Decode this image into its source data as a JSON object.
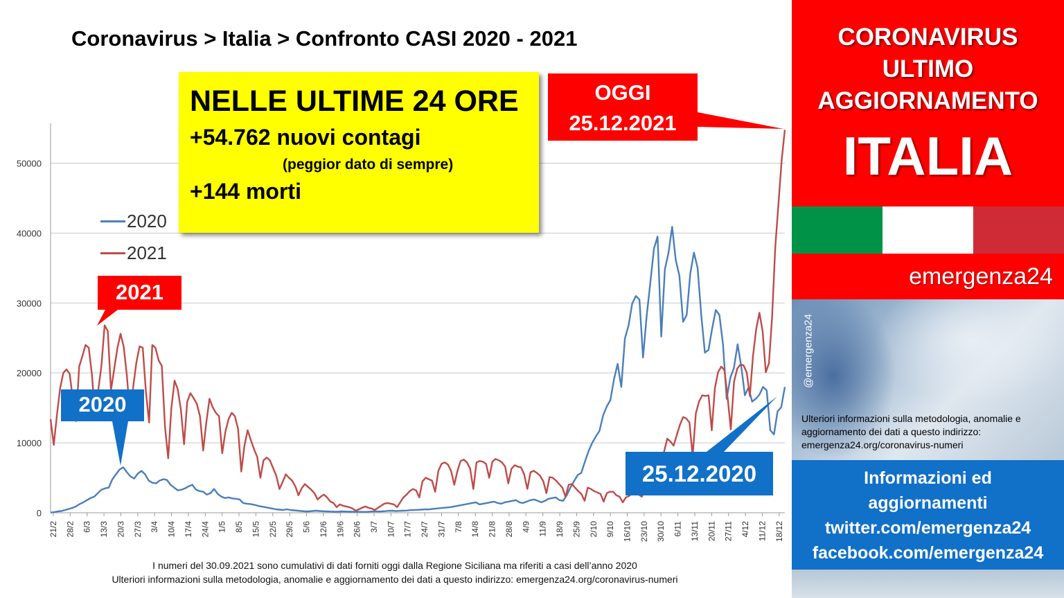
{
  "title": "Coronavirus > Italia > Confronto CASI 2020 - 2021",
  "highlight_box": {
    "headline": "NELLE ULTIME 24 ORE",
    "new_cases": "+54.762 nuovi contagi",
    "note": "(peggior dato di sempre)",
    "deaths": "+144 morti"
  },
  "callouts": {
    "oggi_line1": "OGGI",
    "oggi_line2": "25.12.2021",
    "label_2021": "2021",
    "label_2020": "2020",
    "date_2020": "25.12.2020"
  },
  "footer": {
    "line1": "I numeri del 30.09.2021 sono cumulativi di dati forniti oggi dalla Regione Siciliana ma riferiti a casi dell’anno 2020",
    "line2": "Ulteriori informazioni sulla metodologia, anomalie e aggiornamento dei dati a questo indirizzo: emergenza24.org/coronavirus-numeri"
  },
  "sidebar": {
    "line1": "CORONAVIRUS",
    "line2": "ULTIMO",
    "line3": "AGGIORNAMENTO",
    "country": "ITALIA",
    "brand": "emergenza24",
    "handle": "@emergenza24",
    "method_text": "Ulteriori informazioni sulla metodologia, anomalie e aggiornamento dei dati a questo indirizzo: emergenza24.org/coronavirus-numeri",
    "info_lines": [
      "Informazioni ed",
      "aggiornamenti",
      "twitter.com/emergenza24",
      "facebook.com/emergenza24"
    ],
    "flag_colors": [
      "#009246",
      "#ffffff",
      "#ce2b37"
    ]
  },
  "colors": {
    "series_2020": "#4a7ebb",
    "series_2021": "#be4b48",
    "callout_red": "#ff0000",
    "callout_blue": "#1170c8",
    "highlight": "#ffff00"
  },
  "chart_data": {
    "type": "line",
    "x_tick_labels": [
      "21/2",
      "28/2",
      "6/3",
      "13/3",
      "20/3",
      "27/3",
      "3/4",
      "10/4",
      "17/4",
      "24/4",
      "1/5",
      "8/5",
      "15/5",
      "22/5",
      "29/5",
      "5/6",
      "12/6",
      "19/6",
      "26/6",
      "3/7",
      "10/7",
      "17/7",
      "24/7",
      "31/7",
      "7/8",
      "14/8",
      "21/8",
      "28/8",
      "4/9",
      "11/9",
      "18/9",
      "25/9",
      "2/10",
      "9/10",
      "16/10",
      "23/10",
      "30/10",
      "6/11",
      "13/11",
      "20/11",
      "27/11",
      "4/12",
      "11/12",
      "18/12"
    ],
    "x_start": "21/2",
    "x_end": "25/12",
    "ylim": [
      0,
      55000
    ],
    "y_ticks": [
      0,
      10000,
      20000,
      30000,
      40000,
      50000
    ],
    "grid": true,
    "legend": "left",
    "series": [
      {
        "name": "2020",
        "values": [
          20,
          100,
          200,
          250,
          400,
          550,
          700,
          900,
          1250,
          1500,
          1800,
          2100,
          2300,
          2800,
          3300,
          3500,
          3600,
          4800,
          5500,
          6200,
          6500,
          5800,
          5200,
          4900,
          5600,
          6000,
          5500,
          4600,
          4300,
          4200,
          4600,
          4800,
          4700,
          4000,
          3600,
          3200,
          3300,
          3500,
          3800,
          4000,
          3300,
          3100,
          3000,
          2600,
          2800,
          3400,
          2700,
          2300,
          2100,
          2200,
          2050,
          2000,
          1900,
          1400,
          1300,
          1250,
          1150,
          1000,
          900,
          800,
          700,
          600,
          500,
          450,
          400,
          500,
          400,
          350,
          300,
          250,
          200,
          200,
          250,
          300,
          250,
          220,
          200,
          180,
          160,
          150,
          200,
          180,
          170,
          160,
          150,
          140,
          130,
          130,
          180,
          200,
          190,
          200,
          230,
          280,
          300,
          250,
          280,
          300,
          320,
          380,
          400,
          420,
          450,
          500,
          480,
          550,
          600,
          650,
          700,
          750,
          800,
          900,
          1000,
          1100,
          1200,
          1300,
          1400,
          1500,
          1200,
          1300,
          1400,
          1500,
          1600,
          1400,
          1300,
          1500,
          1600,
          1700,
          1800,
          1500,
          1400,
          1600,
          1800,
          1900,
          1700,
          1500,
          1700,
          2000,
          2100,
          2200,
          1800,
          1700,
          2500,
          3600,
          4500,
          5400,
          5700,
          7300,
          8800,
          10000,
          10900,
          11700,
          13900,
          15200,
          16100,
          19100,
          21300,
          18000,
          24900,
          26800,
          29900,
          31000,
          30500,
          22200,
          28200,
          32900,
          37800,
          39500,
          25200,
          34800,
          37200,
          40900,
          36100,
          33900,
          27300,
          28300,
          34300,
          37200,
          35000,
          28300,
          22900,
          23300,
          26300,
          29000,
          28300,
          24000,
          16300,
          19300,
          20700,
          24100,
          21000,
          16800,
          17900,
          15900,
          16300,
          16900,
          18000,
          17500,
          11800,
          11200,
          14500,
          15100,
          18000
        ],
        "color": "#4a7ebb"
      },
      {
        "name": "2021",
        "values": [
          13400,
          9700,
          14000,
          17800,
          20000,
          20500,
          19900,
          16400,
          13100,
          20900,
          22400,
          24000,
          23600,
          19800,
          13800,
          17500,
          21000,
          26800,
          26000,
          17500,
          20500,
          23500,
          25600,
          23800,
          19700,
          14000,
          18000,
          21500,
          23800,
          23600,
          17200,
          12900,
          24000,
          23600,
          21800,
          21000,
          12300,
          7800,
          15000,
          18900,
          17700,
          14800,
          9800,
          15900,
          17100,
          16400,
          15600,
          13800,
          8900,
          12900,
          16300,
          15100,
          14300,
          13800,
          8500,
          11600,
          13400,
          14300,
          13800,
          12000,
          5900,
          9600,
          11800,
          10400,
          9100,
          8000,
          5000,
          7500,
          7900,
          7500,
          6400,
          5300,
          3400,
          4400,
          5500,
          5000,
          4600,
          3800,
          2500,
          3500,
          4100,
          3700,
          3300,
          2800,
          1900,
          2300,
          2600,
          2200,
          1600,
          1400,
          800,
          1200,
          1000,
          900,
          800,
          600,
          300,
          500,
          700,
          900,
          700,
          600,
          400,
          700,
          1000,
          1300,
          1400,
          1300,
          1200,
          800,
          1500,
          2200,
          2600,
          3100,
          3400,
          3200,
          2200,
          4500,
          5000,
          4800,
          4600,
          3000,
          6000,
          7000,
          7200,
          6900,
          6000,
          4000,
          6000,
          7400,
          7600,
          7200,
          6300,
          3400,
          7200,
          7400,
          7300,
          7000,
          5000,
          7300,
          7700,
          7500,
          7200,
          6600,
          4200,
          6300,
          6800,
          6600,
          6500,
          5500,
          3400,
          5800,
          6000,
          5700,
          5300,
          4500,
          2800,
          5100,
          5000,
          4600,
          4100,
          3600,
          2300,
          4000,
          4100,
          3600,
          3100,
          2700,
          1700,
          3600,
          3400,
          3100,
          2900,
          2700,
          1600,
          2800,
          3000,
          3000,
          2500,
          2300,
          1500,
          2200,
          2400,
          2800,
          3900,
          2600,
          2300,
          3100,
          4900,
          5600,
          4900,
          4400,
          6200,
          8700,
          10600,
          10200,
          9600,
          11100,
          12600,
          13700,
          13500,
          12900,
          8100,
          14200,
          15900,
          16800,
          16700,
          16800,
          11800,
          17800,
          20100,
          20900,
          20400,
          16500,
          11900,
          18700,
          20600,
          21200,
          21100,
          20100,
          16700,
          22500,
          26300,
          28600,
          26000,
          20100,
          21400,
          28000,
          38000,
          44200,
          50400,
          54762
        ]
      }
    ]
  }
}
